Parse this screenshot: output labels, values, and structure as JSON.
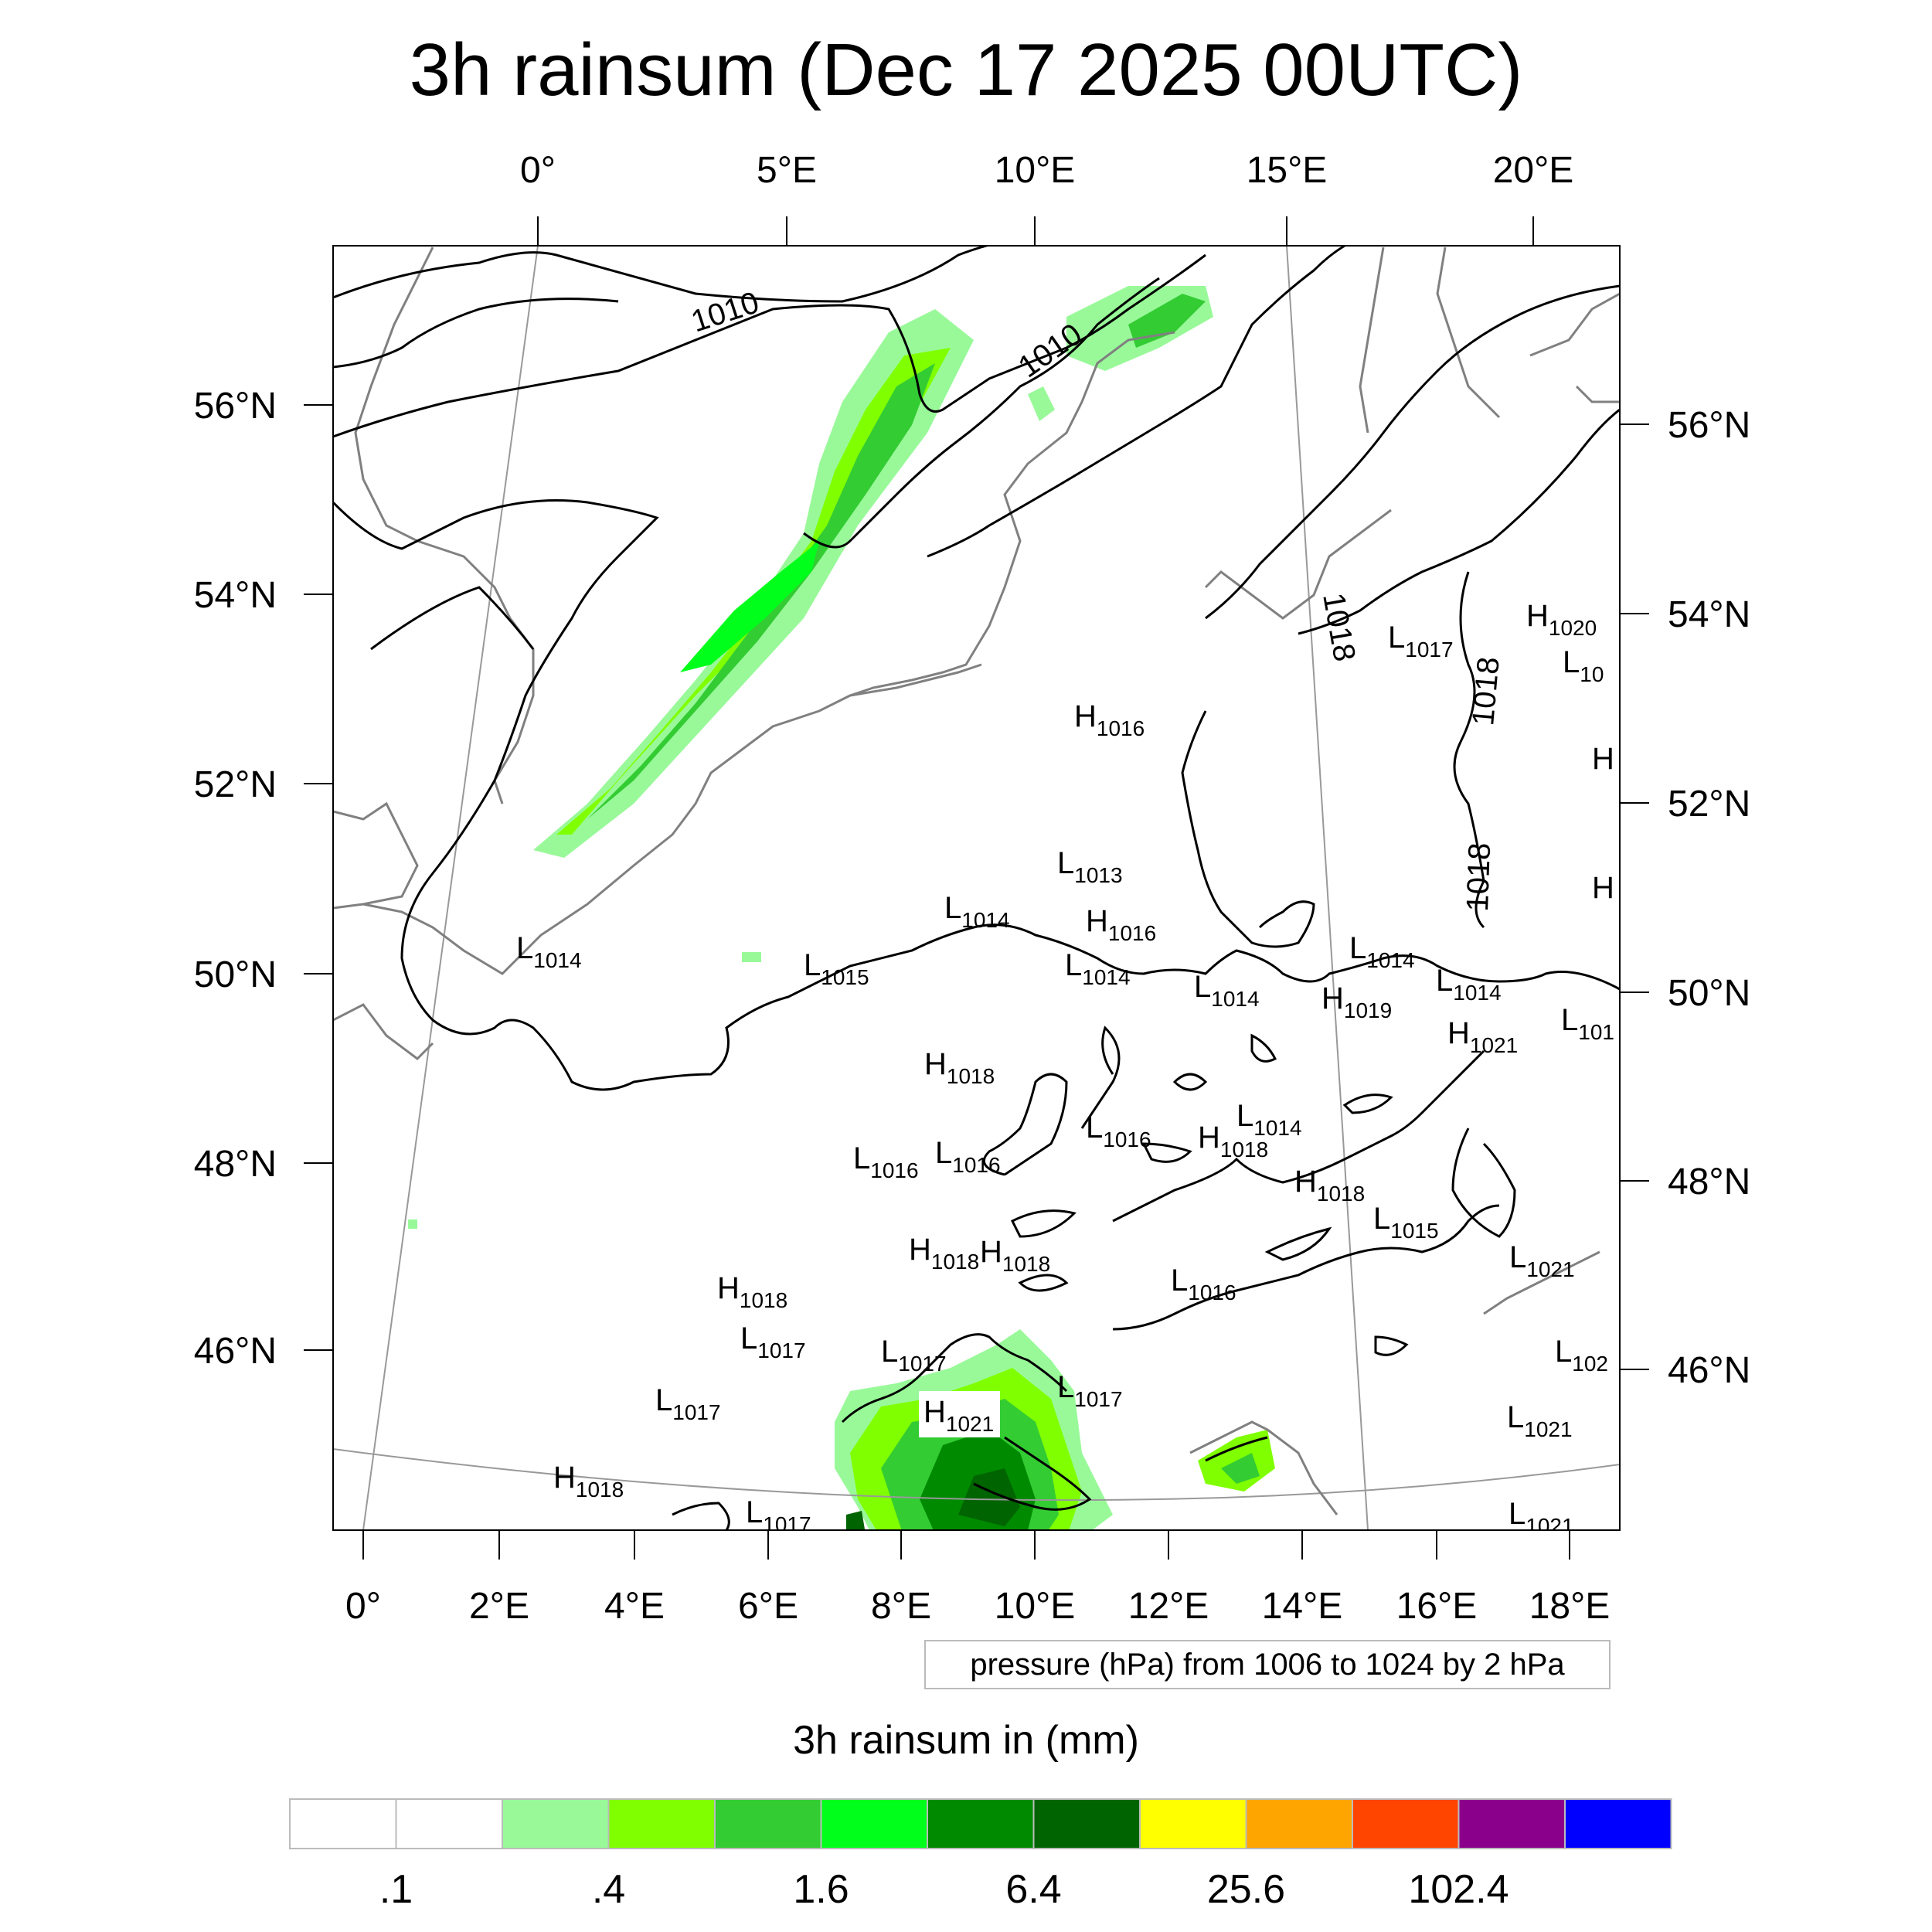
{
  "title": "3h rainsum (Dec 17 2025 00UTC)",
  "map": {
    "top_lon_labels": [
      "0°",
      "5°E",
      "10°E",
      "15°E",
      "20°E"
    ],
    "bottom_lon_labels": [
      "0°",
      "2°E",
      "4°E",
      "6°E",
      "8°E",
      "10°E",
      "12°E",
      "14°E",
      "16°E",
      "18°E"
    ],
    "left_lat_labels": [
      "56°N",
      "54°N",
      "52°N",
      "50°N",
      "48°N",
      "46°N"
    ],
    "right_lat_labels": [
      "56°N",
      "54°N",
      "52°N",
      "50°N",
      "48°N",
      "46°N"
    ],
    "contour_labels": [
      "1010",
      "1010",
      "1018",
      "1018",
      "1018"
    ],
    "pressure_centers": [
      {
        "t": "L",
        "v": "1014"
      },
      {
        "t": "L",
        "v": "1015"
      },
      {
        "t": "L",
        "v": "1014"
      },
      {
        "t": "L",
        "v": "1013"
      },
      {
        "t": "H",
        "v": "1016"
      },
      {
        "t": "L",
        "v": "1014"
      },
      {
        "t": "H",
        "v": "1016"
      },
      {
        "t": "L",
        "v": "1014"
      },
      {
        "t": "L",
        "v": "1017"
      },
      {
        "t": "H",
        "v": "1020"
      },
      {
        "t": "L",
        "v": "10"
      },
      {
        "t": "H",
        "v": ""
      },
      {
        "t": "H",
        "v": ""
      },
      {
        "t": "L",
        "v": "1014"
      },
      {
        "t": "L",
        "v": "1014"
      },
      {
        "t": "H",
        "v": "1019"
      },
      {
        "t": "H",
        "v": "1021"
      },
      {
        "t": "L",
        "v": "101"
      },
      {
        "t": "H",
        "v": "1018"
      },
      {
        "t": "L",
        "v": "1016"
      },
      {
        "t": "L",
        "v": "1014"
      },
      {
        "t": "H",
        "v": "1018"
      },
      {
        "t": "L",
        "v": "1016"
      },
      {
        "t": "L",
        "v": "1016"
      },
      {
        "t": "H",
        "v": "1018"
      },
      {
        "t": "L",
        "v": "1015"
      },
      {
        "t": "H",
        "v": "1018"
      },
      {
        "t": "H",
        "v": "1018"
      },
      {
        "t": "L",
        "v": "1016"
      },
      {
        "t": "H",
        "v": "1018"
      },
      {
        "t": "L",
        "v": "1021"
      },
      {
        "t": "L",
        "v": "1017"
      },
      {
        "t": "L",
        "v": "1017"
      },
      {
        "t": "L",
        "v": "102"
      },
      {
        "t": "L",
        "v": "1017"
      },
      {
        "t": "H",
        "v": "1021"
      },
      {
        "t": "L",
        "v": "1017"
      },
      {
        "t": "L",
        "v": "1021"
      },
      {
        "t": "H",
        "v": "1018"
      },
      {
        "t": "L",
        "v": "1017"
      },
      {
        "t": "L",
        "v": "1021"
      }
    ]
  },
  "pressure_note": "pressure (hPa) from 1006 to 1024 by 2 hPa",
  "colorbar": {
    "title": "3h rainsum in (mm)",
    "colors": [
      "#ffffff",
      "#ffffff",
      "#99f999",
      "#80ff00",
      "#33cc33",
      "#00ff1a",
      "#008a00",
      "#006400",
      "#ffff00",
      "#ffa500",
      "#ff4500",
      "#8b008b",
      "#0000ff"
    ],
    "labels": [
      ".1",
      ".4",
      "1.6",
      "6.4",
      "25.6",
      "102.4"
    ]
  }
}
